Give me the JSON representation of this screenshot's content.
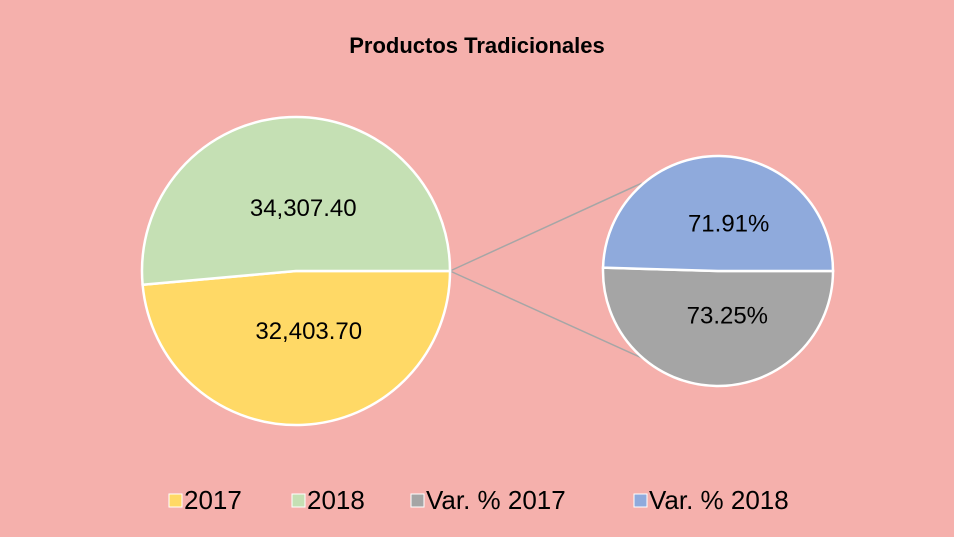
{
  "chart_data": {
    "type": "pie",
    "title": "Productos Tradicionales",
    "categories": [
      "2017",
      "2018",
      "Var. % 2017",
      "Var. % 2018"
    ],
    "values": [
      32403.7,
      34307.4,
      73.25,
      71.91
    ],
    "value_labels": [
      "32,403.70",
      "34,307.40",
      "73.25%",
      "71.91%"
    ],
    "colors": [
      "#ffd966",
      "#c5e0b4",
      "#a5a5a5",
      "#8faadc"
    ],
    "legend": "bottom"
  }
}
